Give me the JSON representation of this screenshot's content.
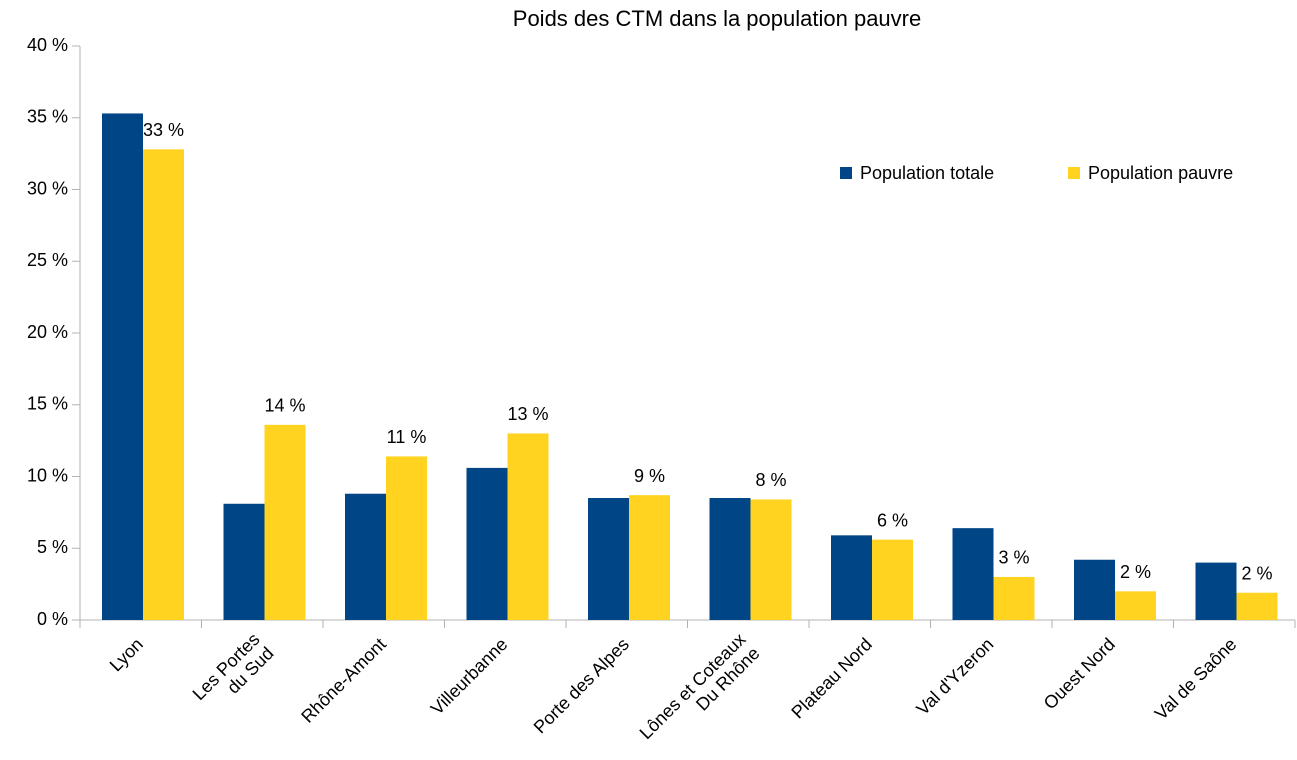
{
  "chart_data": {
    "type": "bar",
    "title": "Poids des CTM dans la population pauvre",
    "categories": [
      "Lyon",
      "Les Portes du Sud",
      "Rhône-Amont",
      "Villeurbanne",
      "Porte des Alpes",
      "Lônes et Coteaux Du Rhône",
      "Plateau Nord",
      "Val d'Yzeron",
      "Ouest Nord",
      "Val de Saône"
    ],
    "series": [
      {
        "name": "Population totale",
        "color": "#004586",
        "values": [
          35.3,
          8.1,
          8.8,
          10.6,
          8.5,
          8.5,
          5.9,
          6.4,
          4.2,
          4.0
        ]
      },
      {
        "name": "Population pauvre",
        "color": "#ffd320",
        "values": [
          32.8,
          13.6,
          11.4,
          13.0,
          8.7,
          8.4,
          5.6,
          3.0,
          2.0,
          1.9
        ],
        "value_labels": [
          "33 %",
          "14 %",
          "11 %",
          "13 %",
          "9 %",
          "8 %",
          "6 %",
          "3 %",
          "2 %",
          "2 %"
        ]
      }
    ],
    "ylim": [
      0,
      40
    ],
    "yticks": [
      {
        "value": 0,
        "label": "0 %"
      },
      {
        "value": 5,
        "label": "5 %"
      },
      {
        "value": 10,
        "label": "10 %"
      },
      {
        "value": 15,
        "label": "15 %"
      },
      {
        "value": 20,
        "label": "20 %"
      },
      {
        "value": 25,
        "label": "25 %"
      },
      {
        "value": 30,
        "label": "30 %"
      },
      {
        "value": 35,
        "label": "35 %"
      },
      {
        "value": 40,
        "label": "40 %"
      }
    ],
    "grid": false,
    "legend": "top-right"
  }
}
